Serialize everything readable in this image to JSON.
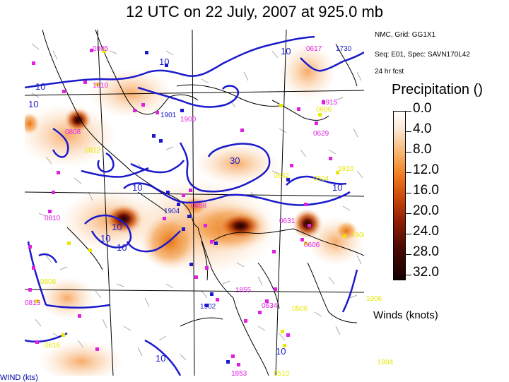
{
  "title": "12 UTC on 22 July, 2007 at 925.0 mb",
  "info_lines": [
    "NMC, Grid: GG1X1",
    "Seq: E01, Spec: SAVN170L42",
    "24 hr fcst"
  ],
  "legend": {
    "title": "Precipitation ()",
    "ticks": [
      "0.0",
      "4.0",
      "8.0",
      "12.0",
      "16.0",
      "20.0",
      "24.0",
      "28.0",
      "32.0"
    ]
  },
  "winds_label": "Winds (knots)",
  "bottom_label": "WIND (kts)",
  "colors": {
    "contour": "#1a1acc",
    "station_magenta": "#e020e0",
    "station_yellow": "#e8e800",
    "station_blue": "#1a1acc",
    "coast": "#000000"
  },
  "contour_labels": [
    "10",
    "10",
    "10",
    "10",
    "10",
    "10",
    "10",
    "10",
    "30",
    "10",
    "10",
    "10"
  ],
  "station_labels": {
    "magenta": [
      "0805",
      "0617",
      "1900",
      "0808",
      "0629",
      "0810",
      "0858",
      "0631",
      "1855",
      "0634",
      "0813",
      "1853",
      "1915",
      "1810",
      "0606"
    ],
    "blue": [
      "1730",
      "1901",
      "1904",
      "1902"
    ],
    "yellow": [
      "1910",
      "0504",
      "1908",
      "1906",
      "0506",
      "0510",
      "1904",
      "0812",
      "0816",
      "0808",
      "0642",
      "0606"
    ]
  }
}
